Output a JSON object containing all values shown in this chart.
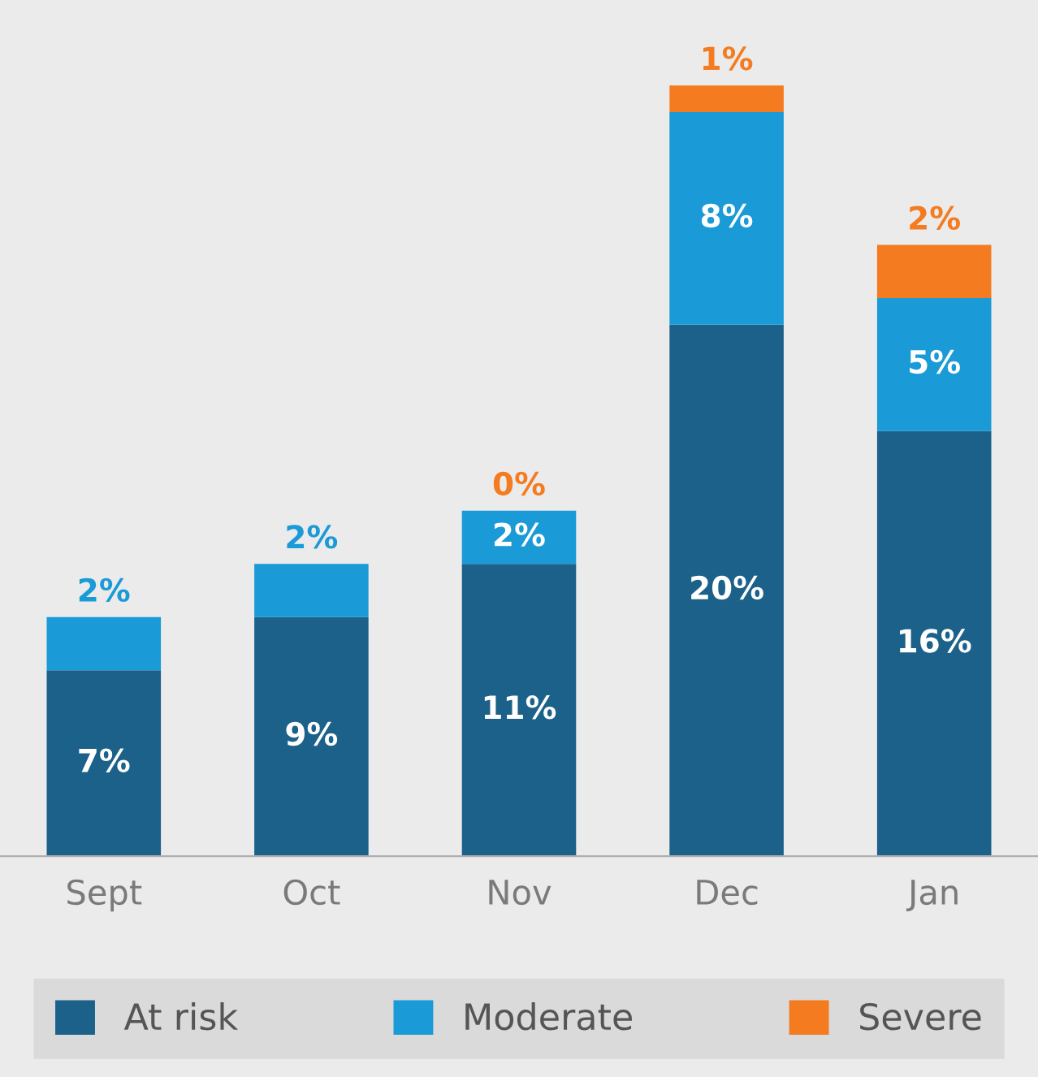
{
  "chart_data": {
    "type": "bar",
    "stacked": true,
    "categories": [
      "Sept",
      "Oct",
      "Nov",
      "Dec",
      "Jan"
    ],
    "series": [
      {
        "name": "At risk",
        "color": "#1b6189",
        "values": [
          7,
          9,
          11,
          20,
          16
        ],
        "value_labels": [
          "7%",
          "9%",
          "11%",
          "20%",
          "16%"
        ]
      },
      {
        "name": "Moderate",
        "color": "#1a9ad6",
        "values": [
          2,
          2,
          2,
          8,
          5
        ],
        "value_labels": [
          "2%",
          "2%",
          "2%",
          "8%",
          "5%"
        ]
      },
      {
        "name": "Severe",
        "color": "#f47b20",
        "values": [
          null,
          null,
          0,
          1,
          2
        ],
        "value_labels": [
          null,
          null,
          "0%",
          "1%",
          "2%"
        ]
      }
    ],
    "legend": "bottom",
    "grid": false
  }
}
